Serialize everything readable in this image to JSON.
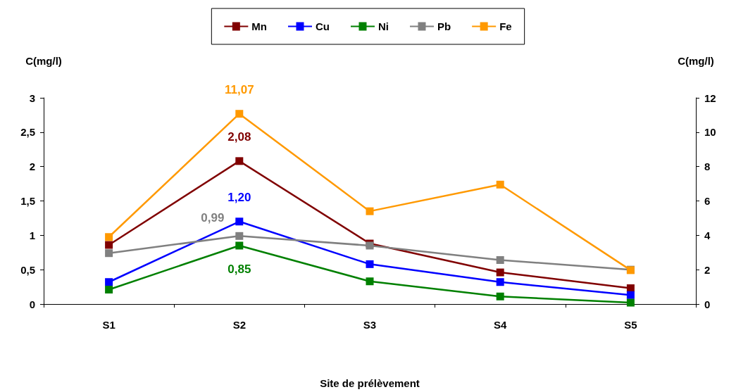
{
  "chart_data": {
    "type": "line",
    "xlabel": "Site de prélèvement",
    "ylabel": "C(mg/l)",
    "y2label": "C(mg/l)",
    "categories": [
      "S1",
      "S2",
      "S3",
      "S4",
      "S5"
    ],
    "series": [
      {
        "name": "Mn",
        "color": "#800000",
        "values": [
          0.86,
          2.08,
          0.88,
          0.46,
          0.23
        ],
        "value_labels": [
          null,
          "2,08",
          null,
          null,
          null
        ]
      },
      {
        "name": "Cu",
        "color": "#0000ff",
        "values": [
          0.32,
          1.2,
          0.58,
          0.32,
          0.13
        ],
        "value_labels": [
          null,
          "1,20",
          null,
          null,
          null
        ]
      },
      {
        "name": "Ni",
        "color": "#008000",
        "values": [
          0.21,
          0.85,
          0.33,
          0.11,
          0.02
        ],
        "value_labels": [
          null,
          "0,85",
          null,
          null,
          null
        ]
      },
      {
        "name": "Pb",
        "color": "#808080",
        "values": [
          0.74,
          0.99,
          0.85,
          0.64,
          0.5
        ],
        "value_labels": [
          null,
          "0,99",
          null,
          null,
          null
        ]
      },
      {
        "name": "Fe",
        "color": "#ff9900",
        "axis": "y2",
        "values": [
          3.9,
          11.07,
          5.4,
          6.95,
          1.97
        ],
        "value_labels": [
          null,
          "11,07",
          null,
          null,
          null
        ]
      }
    ],
    "ylim": [
      0,
      3
    ],
    "yticks": [
      0,
      {
        "value": 0.5,
        "label": "0,5"
      },
      1,
      {
        "value": 1.5,
        "label": "1,5"
      },
      2,
      {
        "value": 2.5,
        "label": "2,5"
      },
      3
    ],
    "y2lim": [
      0,
      12
    ],
    "y2ticks": [
      0,
      2,
      4,
      6,
      8,
      10,
      12
    ],
    "grid": false,
    "legend": "top",
    "marker": "square",
    "line_style": "solid"
  }
}
